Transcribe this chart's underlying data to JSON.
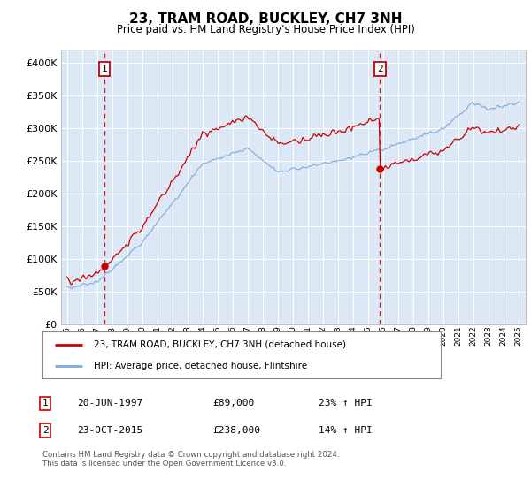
{
  "title": "23, TRAM ROAD, BUCKLEY, CH7 3NH",
  "subtitle": "Price paid vs. HM Land Registry's House Price Index (HPI)",
  "plot_bg_color": "#dce8f5",
  "grid_color": "#ffffff",
  "ylim": [
    0,
    420000
  ],
  "yticks": [
    0,
    50000,
    100000,
    150000,
    200000,
    250000,
    300000,
    350000,
    400000
  ],
  "year_start": 1995,
  "year_end": 2025,
  "sale1_year": 1997.47,
  "sale1_price": 89000,
  "sale2_year": 2015.81,
  "sale2_price": 238000,
  "legend_line1": "23, TRAM ROAD, BUCKLEY, CH7 3NH (detached house)",
  "legend_line2": "HPI: Average price, detached house, Flintshire",
  "table_row1_num": "1",
  "table_row1_date": "20-JUN-1997",
  "table_row1_price": "£89,000",
  "table_row1_hpi": "23% ↑ HPI",
  "table_row2_num": "2",
  "table_row2_date": "23-OCT-2015",
  "table_row2_price": "£238,000",
  "table_row2_hpi": "14% ↑ HPI",
  "footnote": "Contains HM Land Registry data © Crown copyright and database right 2024.\nThis data is licensed under the Open Government Licence v3.0.",
  "red_line_color": "#cc0000",
  "blue_line_color": "#7aabdc",
  "dashed_line_color": "#cc0000",
  "marker_color": "#cc0000",
  "box_edge_color": "#cc0000",
  "spine_color": "#bbbbbb"
}
